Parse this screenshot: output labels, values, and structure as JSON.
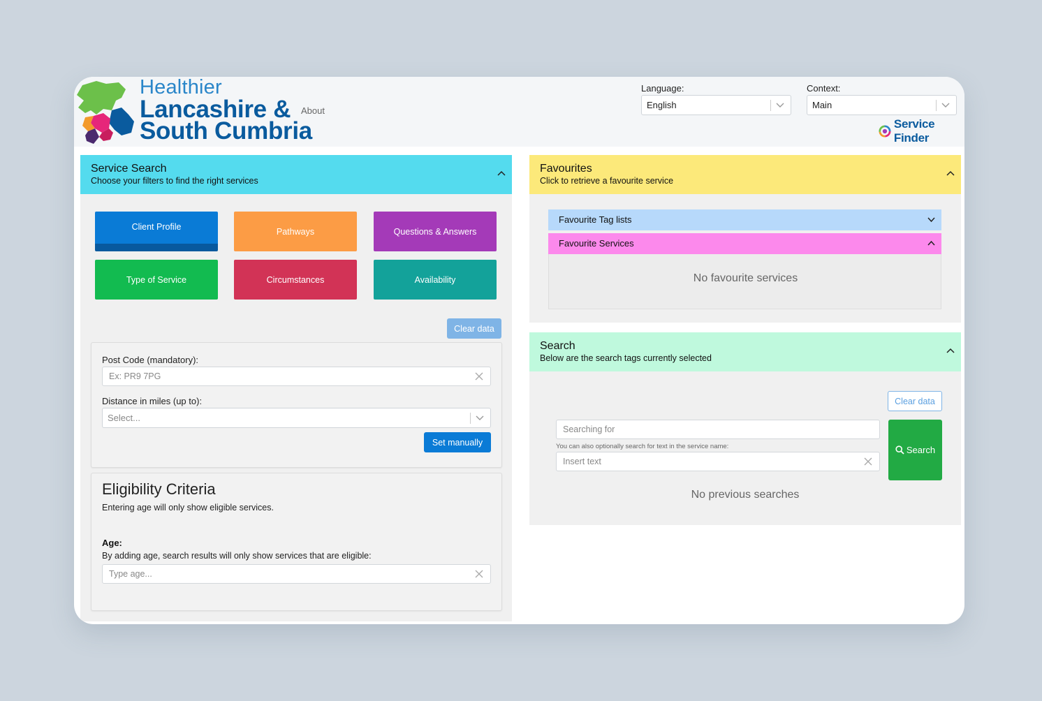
{
  "header": {
    "logo_line1": "Healthier",
    "logo_line2": "Lancashire &",
    "logo_line3": "South Cumbria",
    "about_label": "About",
    "language_label": "Language:",
    "language_value": "English",
    "context_label": "Context:",
    "context_value": "Main",
    "service_finder_label": "Service Finder"
  },
  "service_search": {
    "title": "Service Search",
    "subtitle": "Choose your filters to find the right services",
    "tiles": [
      {
        "label": "Client Profile",
        "color": "#0a7bd6"
      },
      {
        "label": "Pathways",
        "color": "#fc9c45"
      },
      {
        "label": "Questions & Answers",
        "color": "#a43ab8"
      },
      {
        "label": "Type of Service",
        "color": "#12bb50"
      },
      {
        "label": "Circumstances",
        "color": "#d23356"
      },
      {
        "label": "Availability",
        "color": "#13a29a"
      }
    ],
    "clear_data_label": "Clear data",
    "postcode_label": "Post Code (mandatory):",
    "postcode_placeholder": "Ex: PR9 7PG",
    "distance_label": "Distance in miles (up to):",
    "distance_placeholder": "Select...",
    "set_manually_label": "Set manually"
  },
  "eligibility": {
    "title": "Eligibility Criteria",
    "description": "Entering age will only show eligible services.",
    "age_label": "Age:",
    "age_hint": "By adding age, search results will only show services that are eligible:",
    "age_placeholder": "Type age..."
  },
  "favourites": {
    "title": "Favourites",
    "subtitle": "Click to retrieve a favourite service",
    "tag_lists_label": "Favourite Tag lists",
    "services_label": "Favourite Services",
    "empty_label": "No favourite services"
  },
  "search": {
    "title": "Search",
    "subtitle": "Below are the search tags currently selected",
    "clear_data_label": "Clear data",
    "searching_for_placeholder": "Searching for",
    "hint": "You can also optionally search for text in the service name:",
    "insert_text_placeholder": "Insert text",
    "search_button_label": "Search",
    "empty_label": "No previous searches"
  },
  "colors": {
    "service_search_header": "#54dbee",
    "favourites_header": "#fce97a",
    "search_header": "#bff9dd",
    "tag_lists_row": "#b7d9fb",
    "services_row": "#fc89ec",
    "set_manually": "#0a7bd6",
    "clear_data": "#7fb4e6",
    "search_button": "#22aa44"
  }
}
